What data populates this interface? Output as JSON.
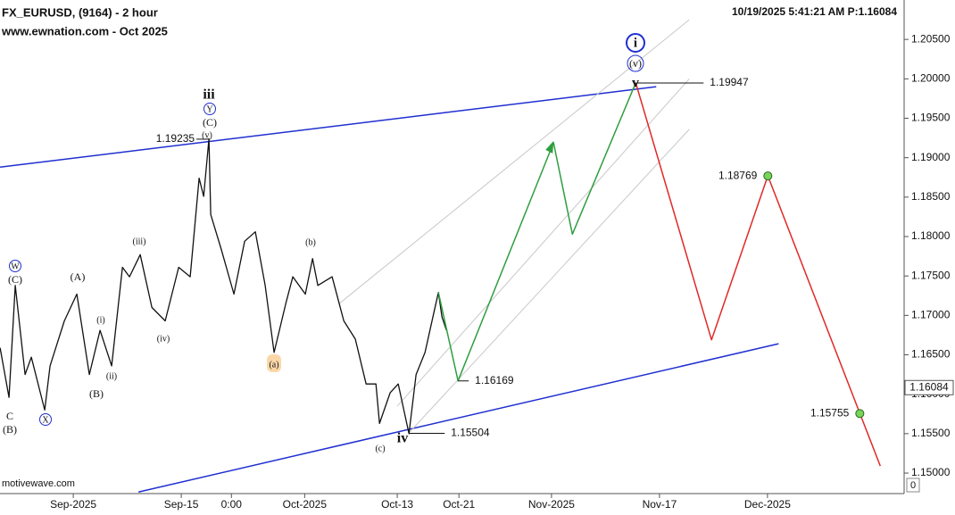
{
  "chart_data": {
    "type": "line",
    "title": "FX_EURUSD, (9164) - 2 hour",
    "subtitle": "www.ewnation.com  - Oct 2025",
    "timestamp": "10/19/2025 5:41:21 AM  P:1.16084",
    "source": "motivewave.com",
    "axis_corner": "0",
    "xlim": [
      -9.5,
      107.6
    ],
    "xticks": [
      {
        "value": 0,
        "label": "Sep-2025"
      },
      {
        "value": 14,
        "label": "Sep-15"
      },
      {
        "value": 20.5,
        "label": "0:00"
      },
      {
        "value": 30,
        "label": "Oct-2025"
      },
      {
        "value": 42,
        "label": "Oct-13"
      },
      {
        "value": 50,
        "label": "Oct-21"
      },
      {
        "value": 62,
        "label": "Nov-2025"
      },
      {
        "value": 76,
        "label": "Nov-17"
      },
      {
        "value": 90,
        "label": "Dec-2025"
      }
    ],
    "ylim": [
      1.1474,
      1.21
    ],
    "yticks": [
      {
        "value": 1.15,
        "label": "1.15000"
      },
      {
        "value": 1.155,
        "label": "1.15500"
      },
      {
        "value": 1.16,
        "label": "1.16000"
      },
      {
        "value": 1.165,
        "label": "1.16500"
      },
      {
        "value": 1.17,
        "label": "1.17000"
      },
      {
        "value": 1.175,
        "label": "1.17500"
      },
      {
        "value": 1.18,
        "label": "1.18000"
      },
      {
        "value": 1.185,
        "label": "1.18500"
      },
      {
        "value": 1.19,
        "label": "1.19000"
      },
      {
        "value": 1.195,
        "label": "1.19500"
      },
      {
        "value": 1.2,
        "label": "1.20000"
      },
      {
        "value": 1.205,
        "label": "1.20500"
      }
    ],
    "last_price": 1.16084,
    "series": [
      {
        "color": "#111111",
        "x": [
          -9.49,
          -8.33,
          -7.52,
          -6.25,
          -5.44,
          -3.7,
          -3.01,
          -1.16,
          0.46,
          2.08,
          3.47,
          4.98,
          6.37,
          7.29,
          8.68,
          10.19,
          11.92,
          13.66,
          15.16,
          16.32,
          16.9,
          17.59,
          17.82,
          19.21,
          20.83,
          22.22,
          23.61,
          24.88,
          26.04,
          27.55,
          28.47,
          30.09,
          31.02,
          31.71,
          33.56,
          35.07,
          36.57,
          37.96,
          39.24,
          39.7,
          41.09,
          42.13,
          43.52,
          44.44,
          45.6,
          46.76,
          47.34,
          47.8,
          48.38
        ],
        "values": [
          1.1659,
          1.1596,
          1.1738,
          1.1625,
          1.1647,
          1.158,
          1.1636,
          1.1693,
          1.1727,
          1.1625,
          1.1681,
          1.1636,
          1.1761,
          1.1749,
          1.1777,
          1.171,
          1.1693,
          1.1761,
          1.1749,
          1.1874,
          1.1851,
          1.1924,
          1.1828,
          1.1783,
          1.1727,
          1.1794,
          1.1806,
          1.1738,
          1.1653,
          1.1715,
          1.1749,
          1.1727,
          1.1772,
          1.1738,
          1.1749,
          1.1693,
          1.167,
          1.1613,
          1.1613,
          1.1563,
          1.1602,
          1.1613,
          1.155,
          1.1625,
          1.1653,
          1.1704,
          1.1729,
          1.1698,
          1.1681
        ]
      },
      {
        "color": "#2e9e3e",
        "x": [
          47.34,
          49.88,
          62.27,
          64.7,
          72.92
        ],
        "values": [
          1.1729,
          1.1617,
          1.1919,
          1.1803,
          1.1995
        ]
      },
      {
        "color": "#e02828",
        "x": [
          72.92,
          82.75,
          90.05,
          101.97,
          104.63
        ],
        "values": [
          1.1995,
          1.1669,
          1.1877,
          1.1576,
          1.1509
        ]
      }
    ],
    "trendlines": [
      {
        "color": "#1f2fd0",
        "x": [
          -9.49,
          75.58
        ],
        "values": [
          1.1888,
          1.199
        ]
      },
      {
        "color": "#1f2fd0",
        "x": [
          8.45,
          91.44
        ],
        "values": [
          1.1476,
          1.1664
        ]
      },
      {
        "color": "#c8c8c8",
        "x": [
          34.49,
          79.86
        ],
        "values": [
          1.1715,
          1.2075
        ]
      },
      {
        "color": "#c8c8c8",
        "x": [
          42.01,
          79.86
        ],
        "values": [
          1.1585,
          1.2
        ]
      },
      {
        "color": "#c8c8c8",
        "x": [
          43.52,
          79.86
        ],
        "values": [
          1.1551,
          1.1936
        ]
      }
    ],
    "levels": [
      {
        "x": 72.92,
        "value": 1.19947
      },
      {
        "x": 90.05,
        "value": 1.18769,
        "marker": true
      },
      {
        "x": 101.97,
        "value": 1.15755,
        "marker": true
      },
      {
        "x": 49.88,
        "value": 1.16169
      },
      {
        "x": 43.52,
        "value": 1.15504
      },
      {
        "x": 17.59,
        "value": 1.19235
      }
    ],
    "annotations": [
      {
        "text": "iii",
        "color": "#d01010",
        "style": "big"
      },
      {
        "text": "Y",
        "color": "#1f2fd0",
        "style": "circle"
      },
      {
        "text": "(C)",
        "color": "#d01010",
        "style": "small"
      },
      {
        "text": "(v)",
        "color": "#d01010",
        "style": "tiny"
      },
      {
        "text": "W",
        "color": "#1f2fd0",
        "style": "circle"
      },
      {
        "text": "(C)",
        "color": "#d01010",
        "style": "small"
      },
      {
        "text": "C",
        "color": "#111111",
        "style": "small"
      },
      {
        "text": "(B)",
        "color": "#d01010",
        "style": "small"
      },
      {
        "text": "X",
        "color": "#1f2fd0",
        "style": "circle"
      },
      {
        "text": "(A)",
        "color": "#d01010",
        "style": "small"
      },
      {
        "text": "(iii)",
        "color": "#d01010",
        "style": "tiny"
      },
      {
        "text": "(i)",
        "color": "#d01010",
        "style": "tiny"
      },
      {
        "text": "(ii)",
        "color": "#d01010",
        "style": "tiny"
      },
      {
        "text": "(B)",
        "color": "#d01010",
        "style": "small"
      },
      {
        "text": "(iv)",
        "color": "#d01010",
        "style": "tiny"
      },
      {
        "text": "(a)",
        "color": "#d01010",
        "style": "tiny"
      },
      {
        "text": "(b)",
        "color": "#d01010",
        "style": "tiny"
      },
      {
        "text": "(c)",
        "color": "#d01010",
        "style": "tiny"
      },
      {
        "text": "iv",
        "color": "#d01010",
        "style": "big"
      },
      {
        "text": "v",
        "color": "#d01010",
        "style": "big"
      },
      {
        "text": "(v)",
        "color": "#1f2fd0",
        "style": "circle-mid"
      },
      {
        "text": "i",
        "color": "#1f2fd0",
        "style": "circle-big"
      }
    ]
  }
}
